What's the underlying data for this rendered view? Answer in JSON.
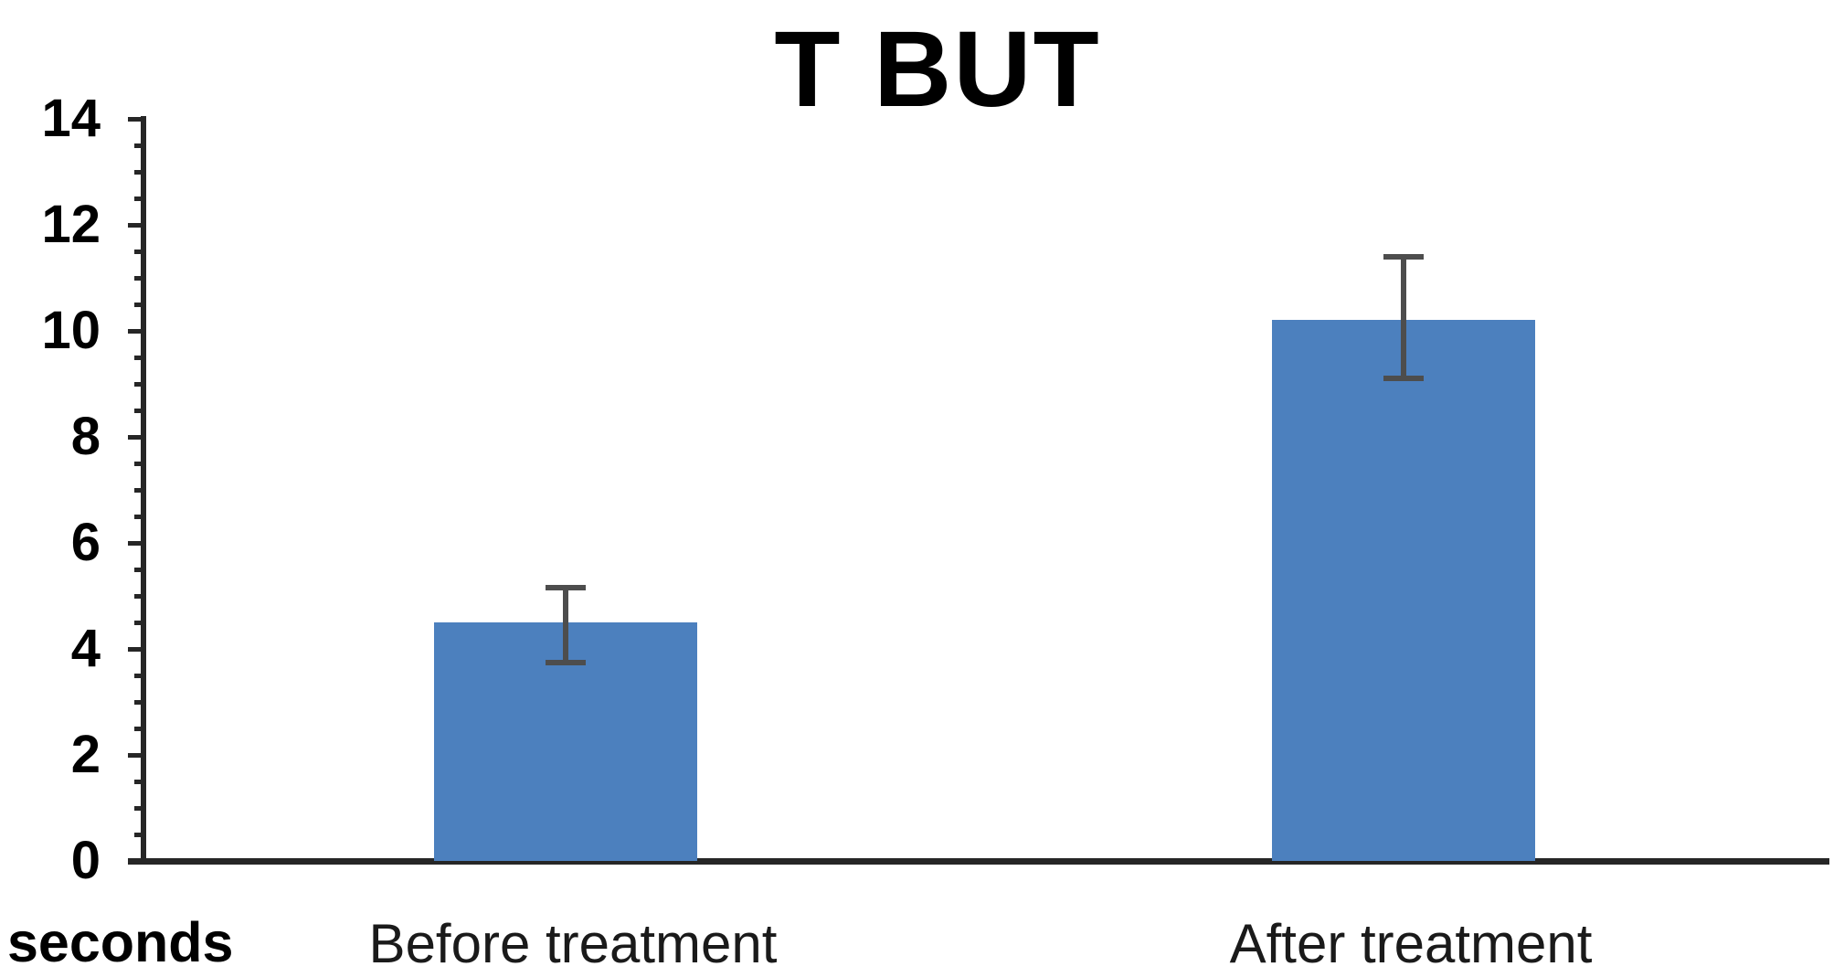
{
  "title": "T BUT",
  "chart_data": {
    "type": "bar",
    "title": "T BUT",
    "categories": [
      "Before treatment",
      "After treatment"
    ],
    "values": [
      4.5,
      10.2
    ],
    "error_bars": [
      {
        "low": 3.75,
        "high": 5.15
      },
      {
        "low": 9.1,
        "high": 11.4
      }
    ],
    "xlabel": "",
    "ylabel": "seconds",
    "ylim": [
      0,
      14
    ],
    "yticks": [
      0,
      2,
      4,
      6,
      8,
      10,
      12,
      14
    ],
    "ytick_step": 2,
    "yminor_step": 0.5,
    "grid": false,
    "legend": "none",
    "colors": {
      "bar": "#4C80BE",
      "error": "#4d4d4d",
      "axis": "#262626",
      "text": "#000000"
    }
  }
}
